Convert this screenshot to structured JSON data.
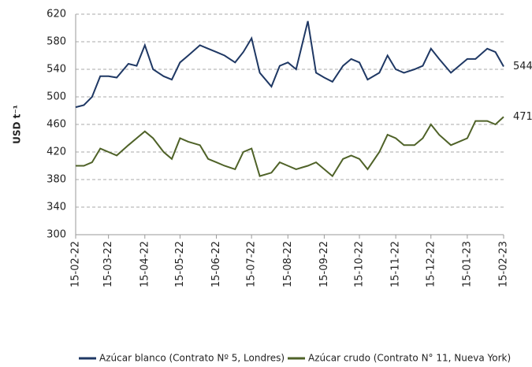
{
  "chart_data": {
    "type": "line",
    "y_label": "USD t⁻¹",
    "x": [
      "15-02-22",
      "22-02-22",
      "01-03-22",
      "08-03-22",
      "15-03-22",
      "22-03-22",
      "01-04-22",
      "08-04-22",
      "15-04-22",
      "22-04-22",
      "01-05-22",
      "08-05-22",
      "15-05-22",
      "22-05-22",
      "01-06-22",
      "08-06-22",
      "15-06-22",
      "22-06-22",
      "01-07-22",
      "08-07-22",
      "15-07-22",
      "22-07-22",
      "01-08-22",
      "08-08-22",
      "15-08-22",
      "22-08-22",
      "01-09-22",
      "08-09-22",
      "15-09-22",
      "22-09-22",
      "01-10-22",
      "08-10-22",
      "15-10-22",
      "22-10-22",
      "01-11-22",
      "08-11-22",
      "15-11-22",
      "22-11-22",
      "01-12-22",
      "08-12-22",
      "15-12-22",
      "22-12-22",
      "01-01-23",
      "08-01-23",
      "15-01-23",
      "22-01-23",
      "01-02-23",
      "08-02-23",
      "15-02-23"
    ],
    "series": [
      {
        "name": "Azúcar blanco (Contrato Nº 5, Londres)",
        "color": "#1f3864",
        "values": [
          485,
          488,
          500,
          530,
          530,
          528,
          548,
          545,
          575,
          540,
          530,
          525,
          550,
          560,
          575,
          570,
          565,
          560,
          550,
          565,
          585,
          535,
          515,
          545,
          550,
          540,
          610,
          535,
          528,
          522,
          545,
          555,
          550,
          525,
          535,
          560,
          540,
          535,
          540,
          545,
          570,
          555,
          535,
          545,
          555,
          555,
          570,
          565,
          544
        ]
      },
      {
        "name": "Azúcar crudo (Contrato N° 11, Nueva York)",
        "color": "#4f6228",
        "values": [
          400,
          400,
          405,
          425,
          420,
          415,
          430,
          440,
          450,
          440,
          420,
          410,
          440,
          435,
          430,
          410,
          405,
          400,
          395,
          420,
          425,
          385,
          390,
          405,
          400,
          395,
          400,
          405,
          395,
          385,
          410,
          415,
          410,
          395,
          420,
          445,
          440,
          430,
          430,
          440,
          460,
          445,
          430,
          435,
          440,
          465,
          465,
          460,
          471
        ]
      }
    ],
    "annotations": [
      "544",
      "471"
    ],
    "xlim": [
      "15-02-22",
      "15-02-23"
    ],
    "xticks": [
      "15-02-22",
      "15-03-22",
      "15-04-22",
      "15-05-22",
      "15-06-22",
      "15-07-22",
      "15-08-22",
      "15-09-22",
      "15-10-22",
      "15-11-22",
      "15-12-22",
      "15-01-23",
      "15-02-23"
    ],
    "ylim": [
      300,
      620
    ],
    "yticks": [
      300,
      340,
      380,
      420,
      460,
      500,
      540,
      580,
      620
    ],
    "grid": true,
    "legend": "bottom"
  }
}
